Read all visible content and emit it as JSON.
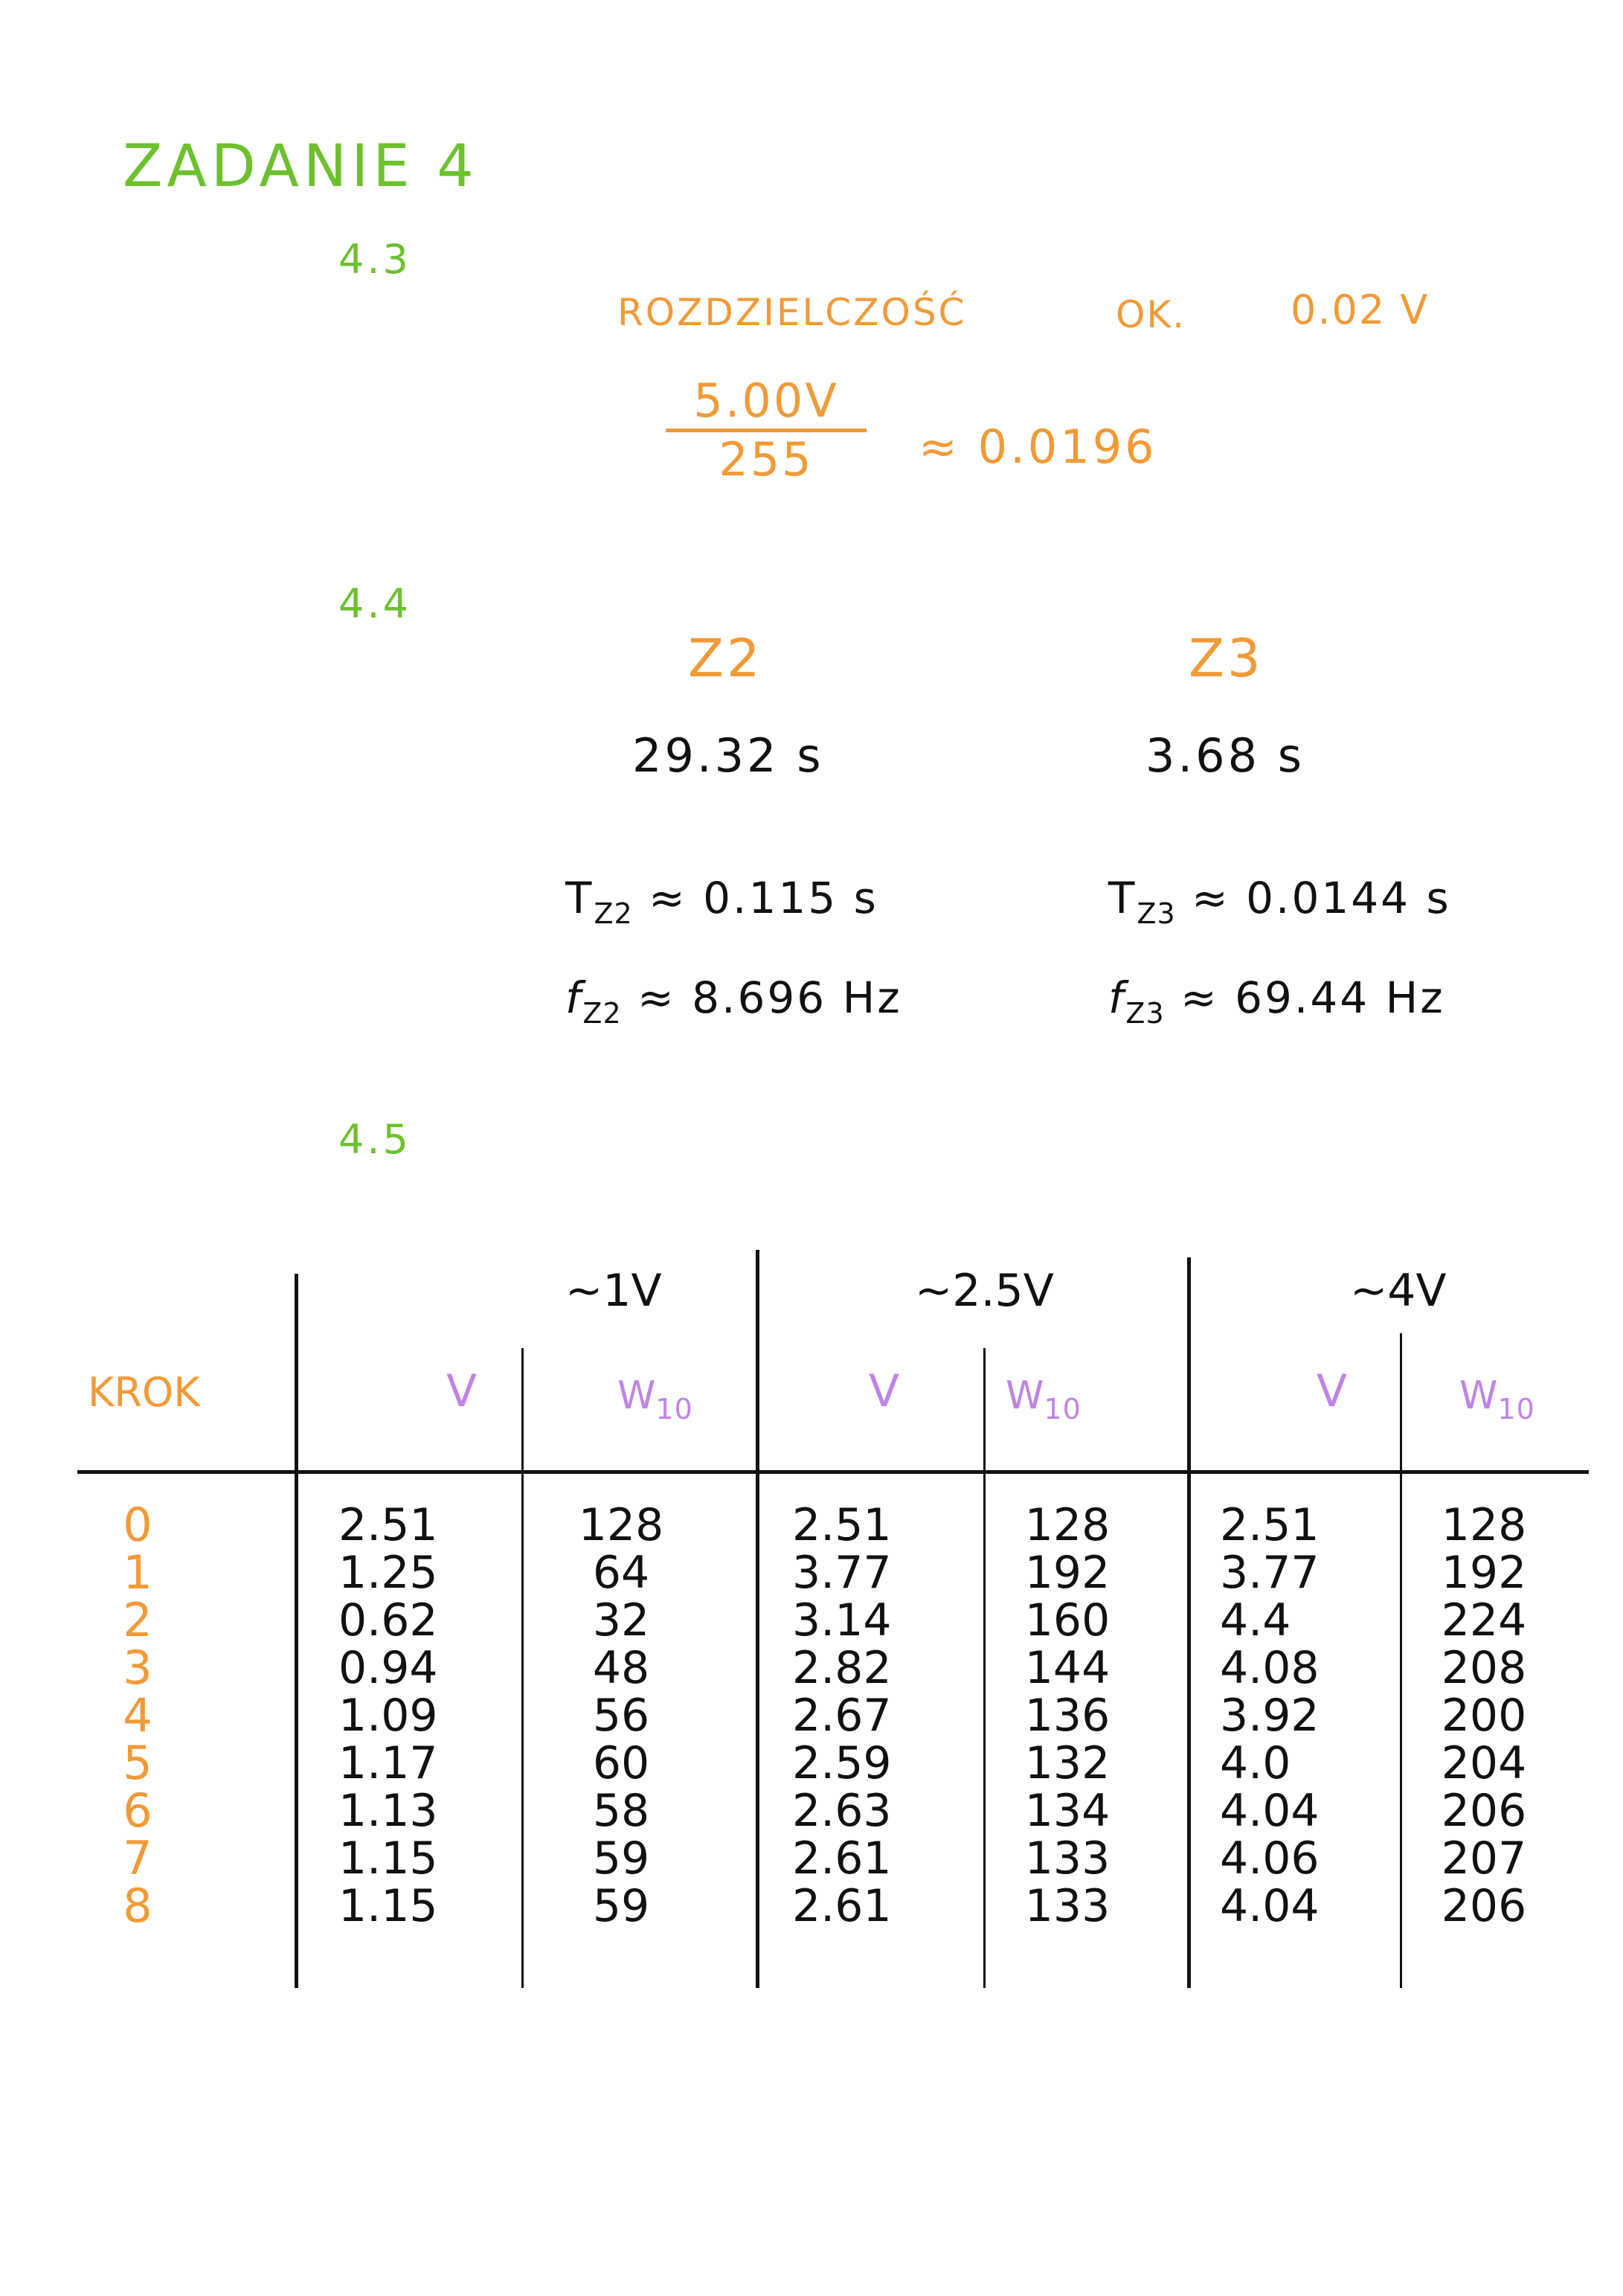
{
  "title": "ZADANIE 4",
  "s43": {
    "label": "4.3",
    "resolution_label": "ROZDZIELCZOŚĆ",
    "ok_label": "OK.",
    "resolution_value": "0.02 V",
    "fraction_numerator": "5.00V",
    "fraction_denominator": "255",
    "approx_result": "≈ 0.0196"
  },
  "s44": {
    "label": "4.4",
    "z2": {
      "name": "Z2",
      "time": "29.32 s",
      "T_label": "T",
      "T_sub": "Z2",
      "T_value": "≈ 0.115 s",
      "f_label": "f",
      "f_sub": "Z2",
      "f_value": "≈ 8.696 Hz"
    },
    "z3": {
      "name": "Z3",
      "time": "3.68 s",
      "T_label": "T",
      "T_sub": "Z3",
      "T_value": "≈ 0.0144 s",
      "f_label": "f",
      "f_sub": "Z3",
      "f_value": "≈ 69.44 Hz"
    }
  },
  "s45": {
    "label": "4.5",
    "krok_header": "KROK",
    "groups": [
      "~1V",
      "~2.5V",
      "~4V"
    ],
    "v_header": "V",
    "w_header": "W",
    "w_sub": "10",
    "krok": [
      "0",
      "1",
      "2",
      "3",
      "4",
      "5",
      "6",
      "7",
      "8"
    ],
    "g1_v": [
      "2.51",
      "1.25",
      "0.62",
      "0.94",
      "1.09",
      "1.17",
      "1.13",
      "1.15",
      "1.15"
    ],
    "g1_w": [
      "128",
      "64",
      "32",
      "48",
      "56",
      "60",
      "58",
      "59",
      "59"
    ],
    "g2_v": [
      "2.51",
      "3.77",
      "3.14",
      "2.82",
      "2.67",
      "2.59",
      "2.63",
      "2.61",
      "2.61"
    ],
    "g2_w": [
      "128",
      "192",
      "160",
      "144",
      "136",
      "132",
      "134",
      "133",
      "133"
    ],
    "g3_v": [
      "2.51",
      "3.77",
      "4.4",
      "4.08",
      "3.92",
      "4.0",
      "4.04",
      "4.06",
      "4.04"
    ],
    "g3_w": [
      "128",
      "192",
      "224",
      "208",
      "200",
      "204",
      "206",
      "207",
      "206"
    ]
  }
}
